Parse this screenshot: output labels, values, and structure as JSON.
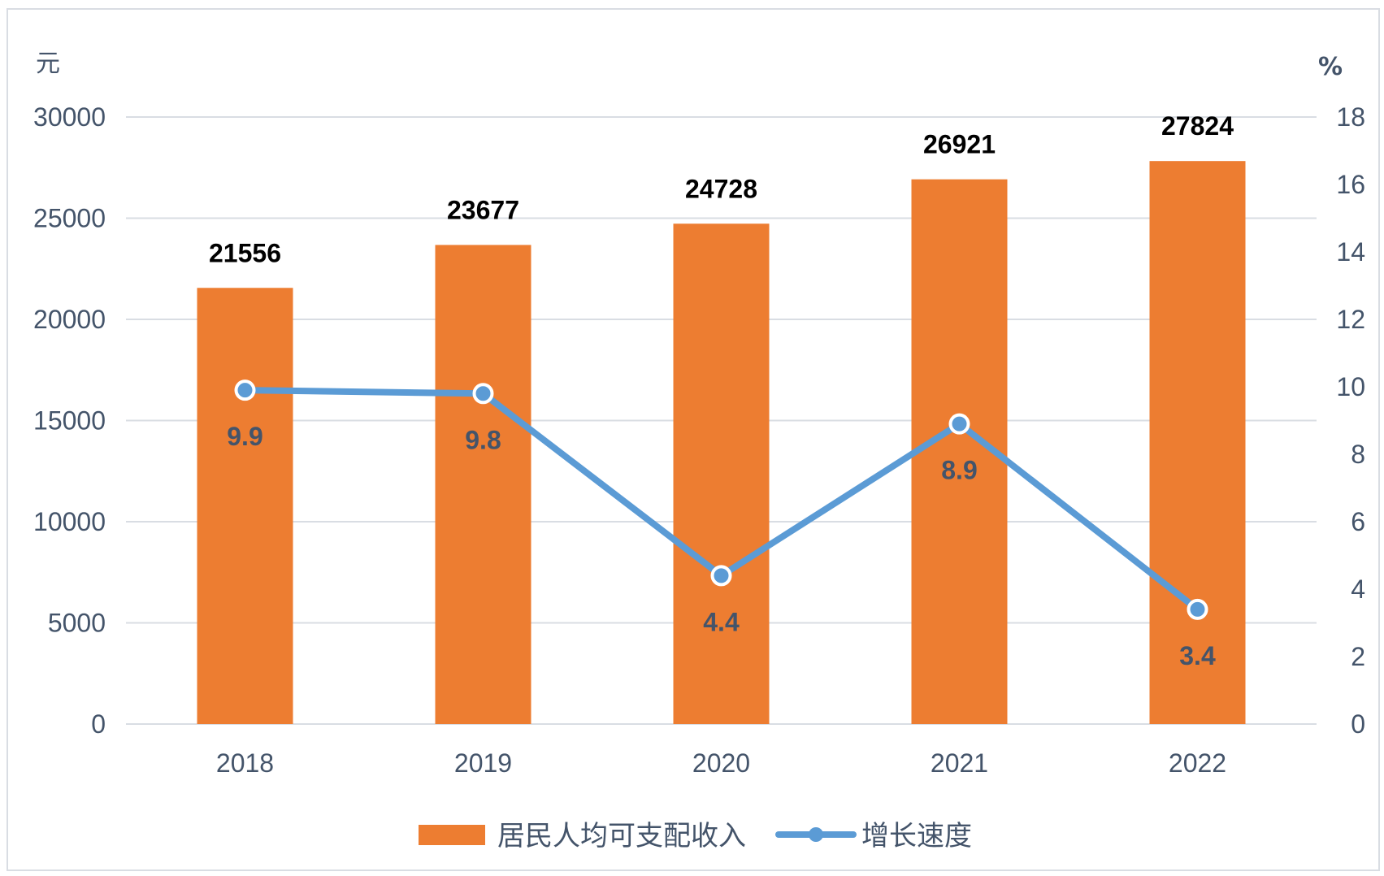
{
  "chart_data": {
    "type": "bar+line",
    "categories": [
      "2018",
      "2019",
      "2020",
      "2021",
      "2022"
    ],
    "series": [
      {
        "name": "居民人均可支配收入",
        "type": "bar",
        "axis": "left",
        "color": "#ed7d31",
        "values": [
          21556,
          23677,
          24728,
          26921,
          27824
        ]
      },
      {
        "name": "增长速度",
        "type": "line",
        "axis": "right",
        "color": "#5b9bd5",
        "values": [
          9.9,
          9.8,
          4.4,
          8.9,
          3.4
        ]
      }
    ],
    "left_axis": {
      "unit": "元",
      "ylim": [
        0,
        30000
      ],
      "ticks": [
        0,
        5000,
        10000,
        15000,
        20000,
        25000,
        30000
      ]
    },
    "right_axis": {
      "unit": "%",
      "ylim": [
        0,
        18
      ],
      "ticks": [
        0,
        2,
        4,
        6,
        8,
        10,
        12,
        14,
        16,
        18
      ]
    },
    "grid": true,
    "legend_position": "bottom"
  }
}
